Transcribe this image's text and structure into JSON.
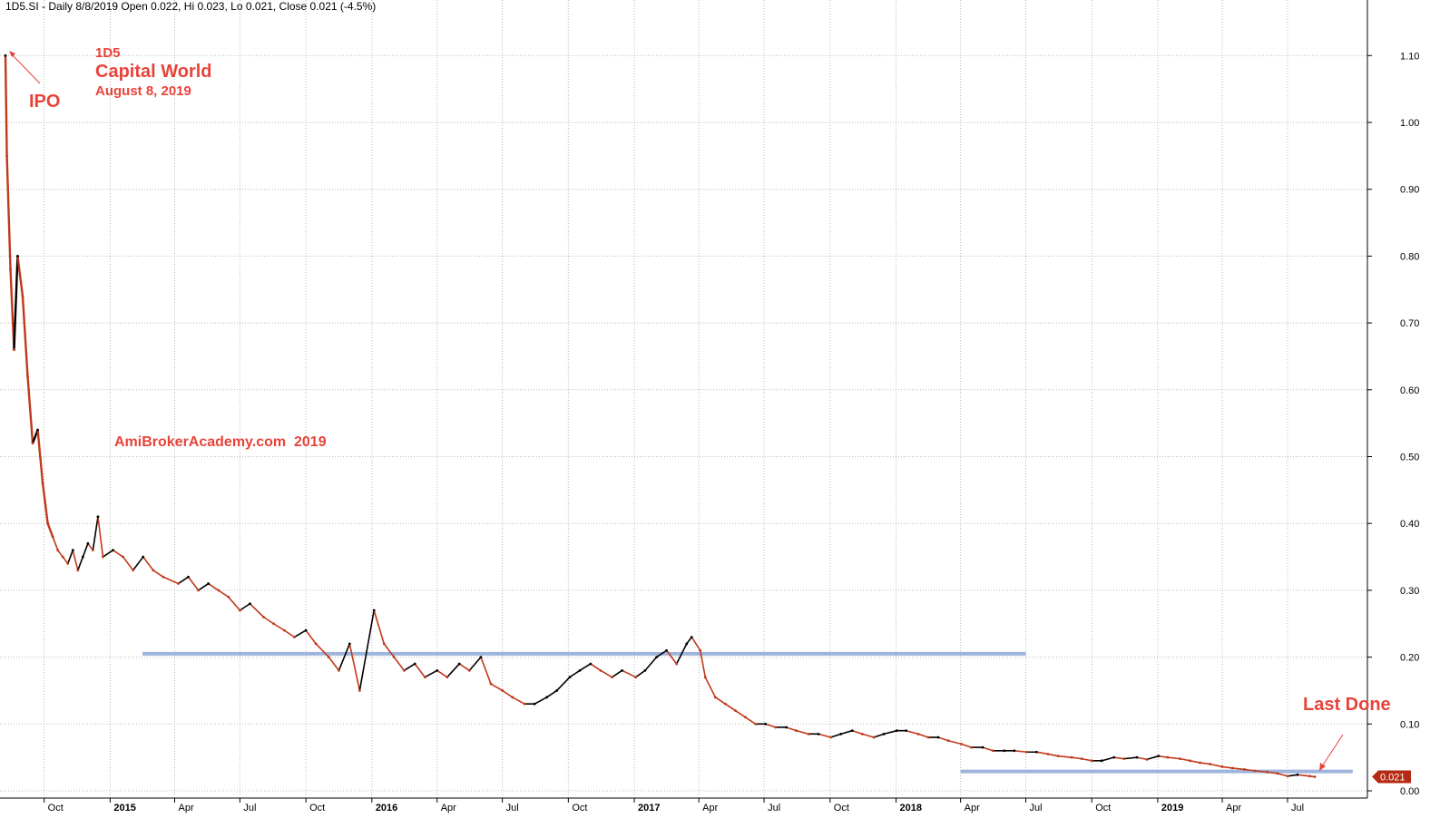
{
  "header": "1D5.SI - Daily 8/8/2019 Open 0.022, Hi 0.023, Lo 0.021, Close 0.021 (-4.5%)",
  "annotations": {
    "ticker": "1D5",
    "company": "Capital World",
    "date": "August 8, 2019",
    "ipo": "IPO",
    "watermark": "AmiBrokerAcademy.com  2019",
    "last_done": "Last Done"
  },
  "colors": {
    "up": "#000000",
    "down": "#c0391b",
    "annotation": "#e8433a",
    "support_line": "#9fb4dc",
    "grid": "#b8b8b8",
    "price_badge": "#b52a12"
  },
  "chart_data": {
    "type": "line",
    "title": "1D5 Capital World",
    "ylim": [
      0.0,
      1.15
    ],
    "y_ticks": [
      "0.00",
      "0.10",
      "0.20",
      "0.30",
      "0.40",
      "0.50",
      "0.60",
      "0.70",
      "0.80",
      "0.90",
      "1.00",
      "1.10"
    ],
    "x_ticks": [
      "Oct",
      "2015",
      "Apr",
      "Jul",
      "Oct",
      "2016",
      "Apr",
      "Jul",
      "Oct",
      "2017",
      "Apr",
      "Jul",
      "Oct",
      "2018",
      "Apr",
      "Jul",
      "Oct",
      "2019",
      "Apr",
      "Jul"
    ],
    "grid": true,
    "last_price": "0.021",
    "series": [
      {
        "name": "1D5.SI Close",
        "x": [
          "2014-08-08",
          "2014-08-10",
          "2014-08-15",
          "2014-08-20",
          "2014-08-25",
          "2014-09-01",
          "2014-09-08",
          "2014-09-15",
          "2014-09-22",
          "2014-09-29",
          "2014-10-06",
          "2014-10-13",
          "2014-10-20",
          "2014-10-27",
          "2014-11-03",
          "2014-11-10",
          "2014-11-17",
          "2014-11-24",
          "2014-12-01",
          "2014-12-08",
          "2014-12-15",
          "2014-12-22",
          "2015-01-05",
          "2015-01-19",
          "2015-02-02",
          "2015-02-16",
          "2015-03-02",
          "2015-03-16",
          "2015-04-06",
          "2015-04-20",
          "2015-05-04",
          "2015-05-18",
          "2015-06-01",
          "2015-06-15",
          "2015-07-01",
          "2015-07-15",
          "2015-08-03",
          "2015-08-17",
          "2015-09-01",
          "2015-09-15",
          "2015-10-01",
          "2015-10-15",
          "2015-11-02",
          "2015-11-16",
          "2015-12-01",
          "2015-12-15",
          "2016-01-04",
          "2016-01-18",
          "2016-02-01",
          "2016-02-15",
          "2016-03-01",
          "2016-03-15",
          "2016-04-01",
          "2016-04-15",
          "2016-05-02",
          "2016-05-16",
          "2016-06-01",
          "2016-06-15",
          "2016-07-01",
          "2016-07-15",
          "2016-08-01",
          "2016-08-15",
          "2016-09-01",
          "2016-09-15",
          "2016-10-03",
          "2016-10-17",
          "2016-11-01",
          "2016-11-15",
          "2016-12-01",
          "2016-12-15",
          "2017-01-03",
          "2017-01-16",
          "2017-02-01",
          "2017-02-15",
          "2017-03-01",
          "2017-03-15",
          "2017-03-22",
          "2017-04-03",
          "2017-04-10",
          "2017-04-24",
          "2017-05-08",
          "2017-05-22",
          "2017-06-05",
          "2017-06-19",
          "2017-07-03",
          "2017-07-17",
          "2017-08-01",
          "2017-08-15",
          "2017-09-01",
          "2017-09-15",
          "2017-10-02",
          "2017-10-16",
          "2017-11-01",
          "2017-11-15",
          "2017-12-01",
          "2017-12-15",
          "2018-01-02",
          "2018-01-15",
          "2018-02-01",
          "2018-02-15",
          "2018-03-01",
          "2018-03-15",
          "2018-04-02",
          "2018-04-16",
          "2018-05-02",
          "2018-05-16",
          "2018-06-01",
          "2018-06-15",
          "2018-07-02",
          "2018-07-16",
          "2018-08-01",
          "2018-08-15",
          "2018-09-03",
          "2018-09-17",
          "2018-10-01",
          "2018-10-15",
          "2018-11-01",
          "2018-11-15",
          "2018-12-03",
          "2018-12-17",
          "2019-01-02",
          "2019-01-15",
          "2019-02-01",
          "2019-02-15",
          "2019-03-01",
          "2019-03-15",
          "2019-04-01",
          "2019-04-15",
          "2019-05-02",
          "2019-05-16",
          "2019-06-03",
          "2019-06-17",
          "2019-07-01",
          "2019-07-15",
          "2019-08-01",
          "2019-08-08"
        ],
        "values": [
          1.1,
          0.95,
          0.78,
          0.66,
          0.8,
          0.74,
          0.62,
          0.52,
          0.54,
          0.46,
          0.4,
          0.38,
          0.36,
          0.35,
          0.34,
          0.36,
          0.33,
          0.35,
          0.37,
          0.36,
          0.41,
          0.35,
          0.36,
          0.35,
          0.33,
          0.35,
          0.33,
          0.32,
          0.31,
          0.32,
          0.3,
          0.31,
          0.3,
          0.29,
          0.27,
          0.28,
          0.26,
          0.25,
          0.24,
          0.23,
          0.24,
          0.22,
          0.2,
          0.18,
          0.22,
          0.15,
          0.27,
          0.22,
          0.2,
          0.18,
          0.19,
          0.17,
          0.18,
          0.17,
          0.19,
          0.18,
          0.2,
          0.16,
          0.15,
          0.14,
          0.13,
          0.13,
          0.14,
          0.15,
          0.17,
          0.18,
          0.19,
          0.18,
          0.17,
          0.18,
          0.17,
          0.18,
          0.2,
          0.21,
          0.19,
          0.22,
          0.23,
          0.21,
          0.17,
          0.14,
          0.13,
          0.12,
          0.11,
          0.1,
          0.1,
          0.095,
          0.095,
          0.09,
          0.085,
          0.085,
          0.08,
          0.085,
          0.09,
          0.085,
          0.08,
          0.085,
          0.09,
          0.09,
          0.085,
          0.08,
          0.08,
          0.075,
          0.07,
          0.065,
          0.065,
          0.06,
          0.06,
          0.06,
          0.058,
          0.058,
          0.055,
          0.052,
          0.05,
          0.048,
          0.045,
          0.045,
          0.05,
          0.048,
          0.05,
          0.047,
          0.052,
          0.05,
          0.048,
          0.045,
          0.042,
          0.04,
          0.036,
          0.034,
          0.032,
          0.03,
          0.028,
          0.026,
          0.022,
          0.024,
          0.022,
          0.021
        ]
      }
    ],
    "reference_lines": [
      {
        "y": 0.205,
        "x_from": "2015-02-15",
        "x_to": "2018-07-01"
      },
      {
        "y": 0.029,
        "x_from": "2018-04-01",
        "x_to": "2019-09-30"
      }
    ]
  }
}
